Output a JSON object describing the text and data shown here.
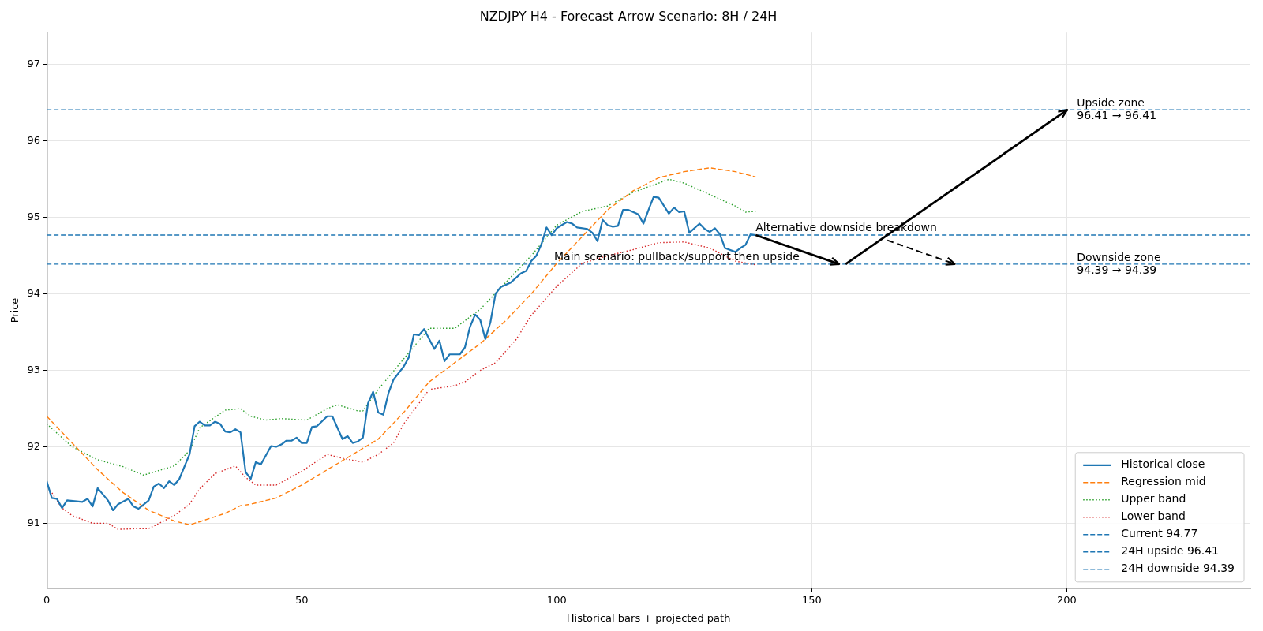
{
  "chart_data": {
    "type": "line",
    "title": "NZDJPY H4 - Forecast Arrow Scenario: 8H / 24H",
    "xlabel": "Historical bars + projected path",
    "ylabel": "Price",
    "xlim": [
      0,
      236
    ],
    "xticks": [
      0,
      50,
      100,
      150,
      200
    ],
    "ylim": [
      90.15,
      97.42
    ],
    "yticks": [
      91,
      92,
      93,
      94,
      95,
      96,
      97
    ],
    "grid": true,
    "legend": "bottom right",
    "series": [
      {
        "name": "Historical close",
        "color": "#1f77b4",
        "line_style": "solid",
        "x": [
          0,
          1,
          2,
          3,
          4,
          7,
          8,
          9,
          10,
          12,
          13,
          14,
          16,
          17,
          18,
          20,
          21,
          22,
          23,
          24,
          25,
          26,
          28,
          29,
          30,
          31,
          32,
          33,
          34,
          35,
          36,
          37,
          38,
          39,
          40,
          41,
          42,
          44,
          45,
          46,
          47,
          48,
          49,
          50,
          51,
          52,
          53,
          55,
          56,
          58,
          59,
          60,
          61,
          62,
          63,
          64,
          65,
          66,
          67,
          68,
          70,
          71,
          72,
          73,
          74,
          76,
          77,
          78,
          79,
          81,
          82,
          83,
          84,
          85,
          86,
          87,
          88,
          89,
          91,
          93,
          94,
          95,
          96,
          97,
          98,
          99,
          100,
          102,
          103,
          104,
          106,
          107,
          108,
          109,
          110,
          111,
          112,
          113,
          114,
          116,
          117,
          118,
          119,
          120,
          122,
          123,
          124,
          125,
          126,
          128,
          129,
          130,
          131,
          132,
          133,
          135,
          136,
          137,
          138,
          139
        ],
        "values": [
          91.55,
          91.33,
          91.32,
          91.2,
          91.3,
          91.28,
          91.32,
          91.22,
          91.46,
          91.3,
          91.17,
          91.25,
          91.32,
          91.22,
          91.19,
          91.3,
          91.48,
          91.52,
          91.46,
          91.55,
          91.5,
          91.58,
          91.9,
          92.27,
          92.33,
          92.28,
          92.28,
          92.33,
          92.3,
          92.2,
          92.19,
          92.23,
          92.19,
          91.67,
          91.58,
          91.8,
          91.77,
          92.01,
          92.0,
          92.03,
          92.08,
          92.08,
          92.12,
          92.05,
          92.05,
          92.26,
          92.27,
          92.4,
          92.4,
          92.1,
          92.14,
          92.05,
          92.07,
          92.12,
          92.57,
          92.72,
          92.45,
          92.42,
          92.7,
          92.88,
          93.05,
          93.17,
          93.47,
          93.46,
          93.54,
          93.28,
          93.39,
          93.12,
          93.21,
          93.21,
          93.3,
          93.57,
          93.73,
          93.66,
          93.41,
          93.63,
          94.0,
          94.09,
          94.15,
          94.27,
          94.3,
          94.43,
          94.5,
          94.65,
          94.87,
          94.77,
          94.86,
          94.94,
          94.92,
          94.87,
          94.85,
          94.8,
          94.69,
          94.97,
          94.9,
          94.88,
          94.89,
          95.1,
          95.1,
          95.04,
          94.92,
          95.1,
          95.27,
          95.26,
          95.05,
          95.13,
          95.07,
          95.08,
          94.8,
          94.92,
          94.85,
          94.81,
          94.86,
          94.78,
          94.6,
          94.55,
          94.6,
          94.64,
          94.78,
          94.77
        ]
      },
      {
        "name": "Regression mid",
        "color": "#ff7f0e",
        "line_style": "dashed",
        "x": [
          0,
          5,
          10,
          15,
          20,
          25,
          28,
          30,
          35,
          38,
          40,
          45,
          50,
          55,
          60,
          65,
          70,
          75,
          80,
          85,
          90,
          95,
          100,
          105,
          110,
          115,
          120,
          125,
          130,
          135,
          139
        ],
        "values": [
          92.4,
          92.05,
          91.7,
          91.4,
          91.17,
          91.03,
          90.98,
          91.02,
          91.13,
          91.23,
          91.25,
          91.33,
          91.5,
          91.7,
          91.9,
          92.1,
          92.45,
          92.85,
          93.1,
          93.35,
          93.65,
          94.0,
          94.4,
          94.75,
          95.1,
          95.35,
          95.52,
          95.6,
          95.65,
          95.6,
          95.53
        ]
      },
      {
        "name": "Upper band",
        "color": "#2ca02c",
        "line_style": "dotted",
        "x": [
          0,
          5,
          10,
          15,
          19,
          25,
          28,
          30,
          35,
          38,
          40,
          43,
          46,
          51,
          55,
          57,
          61,
          62,
          65,
          70,
          75,
          80,
          85,
          90,
          95,
          100,
          105,
          110,
          115,
          120,
          122,
          125,
          130,
          135,
          137,
          139
        ],
        "values": [
          92.3,
          92.0,
          91.83,
          91.74,
          91.63,
          91.75,
          91.95,
          92.25,
          92.48,
          92.5,
          92.4,
          92.35,
          92.37,
          92.35,
          92.5,
          92.55,
          92.47,
          92.47,
          92.75,
          93.15,
          93.55,
          93.55,
          93.8,
          94.15,
          94.5,
          94.9,
          95.08,
          95.15,
          95.33,
          95.45,
          95.5,
          95.45,
          95.3,
          95.15,
          95.07,
          95.08
        ]
      },
      {
        "name": "Lower band",
        "color": "#d62728",
        "line_style": "dotted",
        "x": [
          0,
          3,
          5,
          9,
          12,
          14,
          18,
          20,
          25,
          28,
          30,
          33,
          37,
          39,
          41,
          45,
          50,
          55,
          58,
          62,
          65,
          68,
          70,
          75,
          80,
          82,
          85,
          88,
          92,
          95,
          100,
          105,
          110,
          115,
          120,
          125,
          130,
          135,
          139
        ],
        "values": [
          91.5,
          91.2,
          91.1,
          91.0,
          91.0,
          90.92,
          90.93,
          90.93,
          91.1,
          91.25,
          91.45,
          91.65,
          91.75,
          91.6,
          91.5,
          91.5,
          91.68,
          91.9,
          91.85,
          91.8,
          91.9,
          92.05,
          92.3,
          92.75,
          92.8,
          92.85,
          93.0,
          93.1,
          93.4,
          93.72,
          94.1,
          94.4,
          94.5,
          94.58,
          94.67,
          94.68,
          94.6,
          94.43,
          94.38
        ]
      }
    ],
    "ref_lines": [
      {
        "axis": "y",
        "value": 94.77,
        "label": "Current 94.77",
        "color": "#1f77b4",
        "line_style": "dashed"
      },
      {
        "axis": "y",
        "value": 96.41,
        "label": "24H upside 96.41",
        "color": "#1f77b4",
        "line_style": "dashed"
      },
      {
        "axis": "y",
        "value": 94.39,
        "label": "24H downside 94.39",
        "color": "#1f77b4",
        "line_style": "dashed"
      }
    ],
    "annotations": [
      {
        "text": "Main scenario: pullback/support then upside",
        "x": 99.5,
        "y": 94.39
      },
      {
        "text": "Alternative downside breakdown",
        "x": 139,
        "y": 94.77
      },
      {
        "text": "Upside zone\n96.41 → 96.41",
        "x": 202,
        "y": 96.41
      },
      {
        "text": "Downside zone\n94.39 → 94.39",
        "x": 202,
        "y": 94.39
      }
    ]
  }
}
